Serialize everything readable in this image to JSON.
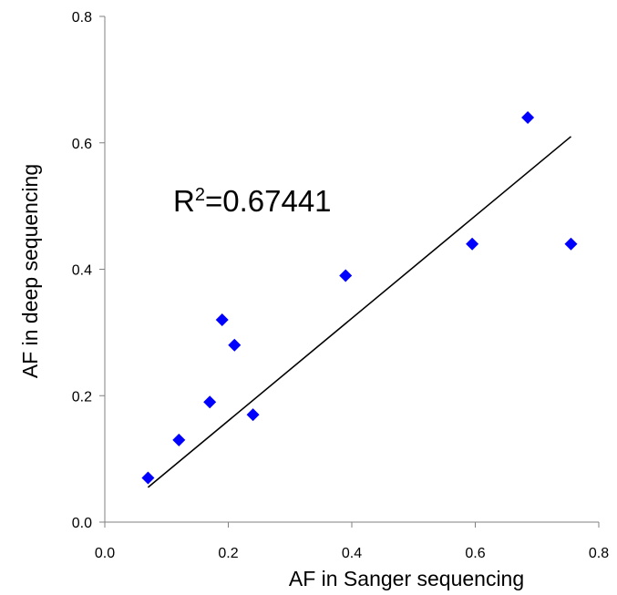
{
  "chart_data": {
    "type": "scatter",
    "title": "",
    "xlabel": "AF in Sanger sequencing",
    "ylabel": "AF in deep sequencing",
    "xlim": [
      0.0,
      0.8
    ],
    "ylim": [
      0.0,
      0.8
    ],
    "x_ticks": [
      "0.0",
      "0.2",
      "0.4",
      "0.6",
      "0.8"
    ],
    "y_ticks": [
      "0.0",
      "0.2",
      "0.4",
      "0.6",
      "0.8"
    ],
    "grid": false,
    "legend": "none",
    "marker": "diamond",
    "marker_color": "#0000ff",
    "series": [
      {
        "points": [
          {
            "x": 0.07,
            "y": 0.07
          },
          {
            "x": 0.12,
            "y": 0.13
          },
          {
            "x": 0.17,
            "y": 0.19
          },
          {
            "x": 0.19,
            "y": 0.32
          },
          {
            "x": 0.21,
            "y": 0.28
          },
          {
            "x": 0.24,
            "y": 0.17
          },
          {
            "x": 0.39,
            "y": 0.39
          },
          {
            "x": 0.595,
            "y": 0.44
          },
          {
            "x": 0.685,
            "y": 0.64
          },
          {
            "x": 0.755,
            "y": 0.44
          }
        ]
      }
    ],
    "trendline": {
      "type": "linear",
      "from": {
        "x": 0.07,
        "y": 0.055
      },
      "to": {
        "x": 0.755,
        "y": 0.61
      },
      "color": "#000000"
    },
    "annotation": {
      "prefix": "R",
      "superscript": "2",
      "suffix": "=0.67441"
    }
  }
}
